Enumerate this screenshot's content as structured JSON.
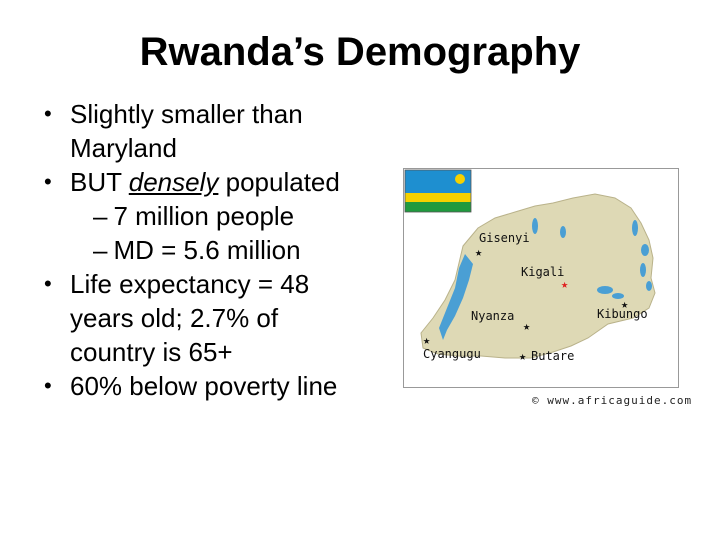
{
  "title": "Rwanda’s Demography",
  "bullets": {
    "b1": "Slightly smaller than Maryland",
    "b2_pre": "BUT ",
    "b2_em": "densely",
    "b2_post": " populated",
    "sub1": "7 million people",
    "sub2": "MD = 5.6 million",
    "b3": "Life expectancy = 48 years old; 2.7% of country is 65+",
    "b4": "60% below poverty line"
  },
  "map": {
    "cities": {
      "gisenyi": "Gisenyi",
      "kigali": "Kigali",
      "nyanza": "Nyanza",
      "kibungo": "Kibungo",
      "cyangugu": "Cyangugu",
      "butare": "Butare"
    },
    "credit": "© www.africaguide.com",
    "colors": {
      "land": "#ded9b5",
      "water": "#4a9fd4",
      "capital_star": "#e02020",
      "city_star": "#111111"
    }
  }
}
